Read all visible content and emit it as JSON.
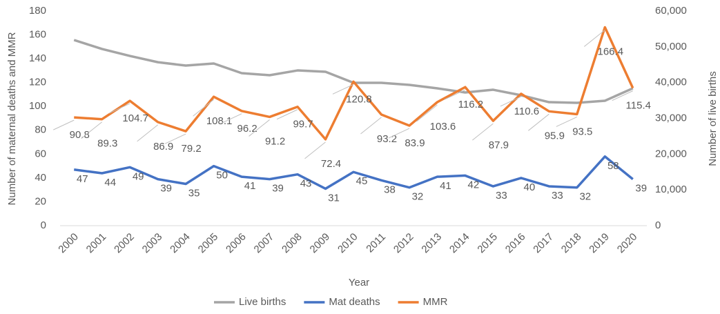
{
  "chart_data": {
    "type": "line",
    "x_label": "Year",
    "y_label": "Number of maternal deaths and MMR",
    "y2_label": "Number of live births",
    "categories": [
      "2000",
      "2001",
      "2002",
      "2003",
      "2004",
      "2005",
      "2006",
      "2007",
      "2008",
      "2009",
      "2010",
      "2011",
      "2012",
      "2013",
      "2014",
      "2015",
      "2016",
      "2017",
      "2018",
      "2019",
      "2020"
    ],
    "series": [
      {
        "name": "Live births",
        "color": "#a5a5a5",
        "axis": "y2",
        "values": [
          51900,
          49400,
          47450,
          45700,
          44750,
          45340,
          42640,
          42060,
          43400,
          43020,
          39940,
          39940,
          39360,
          38390,
          37230,
          38000,
          36460,
          34530,
          34340,
          34920,
          38400
        ]
      },
      {
        "name": "Mat deaths",
        "color": "#4472c4",
        "values": [
          47,
          44,
          49,
          39,
          35,
          50,
          41,
          39,
          43,
          31,
          45,
          38,
          32,
          41,
          42,
          33,
          40,
          33,
          32,
          58,
          39
        ]
      },
      {
        "name": "MMR",
        "color": "#ed7d31",
        "values": [
          90.8,
          89.3,
          104.7,
          86.9,
          79.2,
          108.1,
          96.2,
          91.2,
          99.7,
          72.4,
          120.8,
          93.2,
          83.9,
          103.6,
          116.2,
          87.9,
          110.6,
          95.9,
          93.5,
          166.4,
          115.4
        ]
      }
    ],
    "ylim": [
      0,
      180
    ],
    "yticks": [
      0,
      20,
      40,
      60,
      80,
      100,
      120,
      140,
      160,
      180
    ],
    "y2lim": [
      0,
      60000
    ],
    "y2ticks": [
      0,
      {
        "value": 10000,
        "label": "10,000"
      },
      {
        "value": 20000,
        "label": "20,000"
      },
      {
        "value": 30000,
        "label": "30,000"
      },
      {
        "value": 40000,
        "label": "40,000"
      },
      {
        "value": 50000,
        "label": "50,000"
      },
      {
        "value": 60000,
        "label": "60,000"
      }
    ],
    "legend": "bottom"
  }
}
